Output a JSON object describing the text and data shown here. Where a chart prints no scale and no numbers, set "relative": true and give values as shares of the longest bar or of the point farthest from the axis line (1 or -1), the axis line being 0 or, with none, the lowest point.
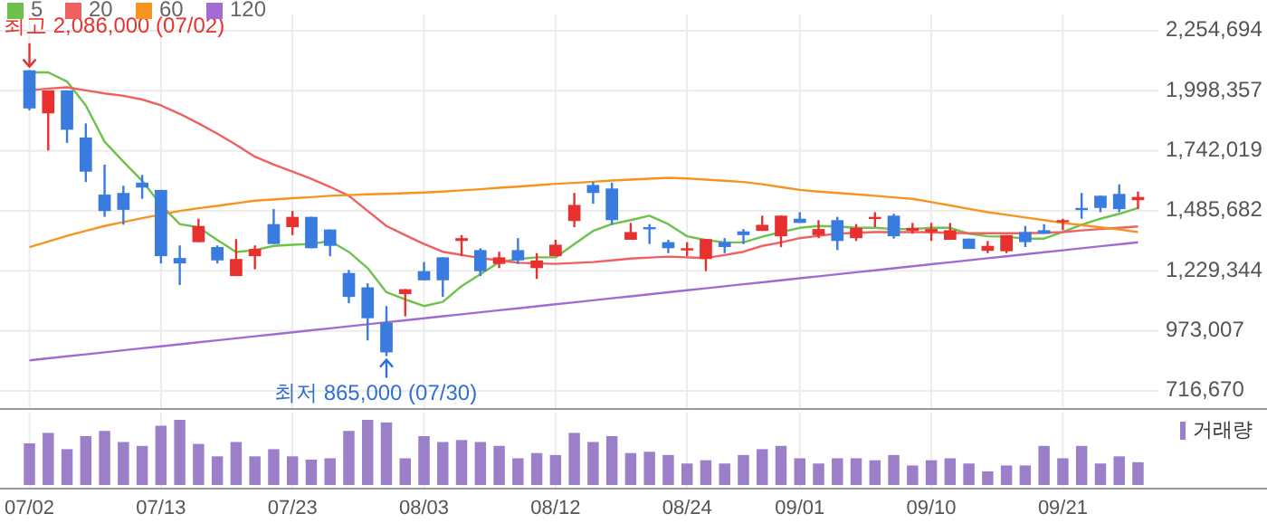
{
  "chart_data": [
    {
      "type": "candlestick",
      "categories": [
        "07/02",
        null,
        null,
        null,
        null,
        null,
        null,
        "07/13",
        null,
        null,
        null,
        null,
        null,
        null,
        "07/23",
        null,
        null,
        null,
        null,
        null,
        null,
        "08/03",
        null,
        null,
        null,
        null,
        null,
        null,
        "08/12",
        null,
        null,
        null,
        null,
        null,
        null,
        "08/24",
        null,
        null,
        null,
        null,
        null,
        "09/01",
        null,
        null,
        null,
        null,
        null,
        null,
        "09/10",
        null,
        null,
        null,
        null,
        null,
        null,
        "09/21",
        null,
        null,
        null,
        null
      ],
      "ohlc": [
        [
          2086000,
          2086000,
          1915000,
          1923000
        ],
        [
          1902000,
          2000000,
          1743000,
          2000000
        ],
        [
          2000000,
          2000000,
          1776000,
          1832000
        ],
        [
          1799000,
          1859000,
          1609000,
          1653000
        ],
        [
          1555000,
          1683000,
          1460000,
          1485000
        ],
        [
          1562000,
          1593000,
          1426000,
          1490000
        ],
        [
          1606000,
          1639000,
          1537000,
          1585000
        ],
        [
          1575000,
          1575000,
          1261000,
          1292000
        ],
        [
          1284000,
          1338000,
          1169000,
          1261000
        ],
        [
          1352000,
          1452000,
          1352000,
          1421000
        ],
        [
          1331000,
          1338000,
          1261000,
          1274000
        ],
        [
          1207000,
          1365000,
          1207000,
          1280000
        ],
        [
          1292000,
          1338000,
          1236000,
          1323000
        ],
        [
          1429000,
          1493000,
          1344000,
          1344000
        ],
        [
          1416000,
          1485000,
          1382000,
          1460000
        ],
        [
          1460000,
          1460000,
          1326000,
          1326000
        ],
        [
          1406000,
          1406000,
          1292000,
          1336000
        ],
        [
          1220000,
          1233000,
          1091000,
          1118000
        ],
        [
          1159000,
          1176000,
          932000,
          1027000
        ],
        [
          1009000,
          1079000,
          865000,
          881000
        ],
        [
          1130000,
          1151000,
          1035000,
          1151000
        ],
        [
          1228000,
          1267000,
          1189000,
          1189000
        ],
        [
          1287000,
          1287000,
          1118000,
          1189000
        ],
        [
          1357000,
          1382000,
          1292000,
          1369000
        ],
        [
          1318000,
          1326000,
          1207000,
          1228000
        ],
        [
          1259000,
          1311000,
          1241000,
          1287000
        ],
        [
          1318000,
          1369000,
          1259000,
          1274000
        ],
        [
          1241000,
          1305000,
          1195000,
          1274000
        ],
        [
          1292000,
          1362000,
          1292000,
          1341000
        ],
        [
          1442000,
          1562000,
          1416000,
          1511000
        ],
        [
          1596000,
          1609000,
          1516000,
          1562000
        ],
        [
          1581000,
          1606000,
          1426000,
          1446000
        ],
        [
          1362000,
          1434000,
          1362000,
          1395000
        ],
        [
          1416000,
          1429000,
          1344000,
          1408000
        ],
        [
          1352000,
          1362000,
          1305000,
          1326000
        ],
        [
          1321000,
          1352000,
          1292000,
          1326000
        ],
        [
          1280000,
          1365000,
          1228000,
          1365000
        ],
        [
          1352000,
          1369000,
          1305000,
          1331000
        ],
        [
          1398000,
          1408000,
          1344000,
          1382000
        ],
        [
          1400000,
          1465000,
          1400000,
          1426000
        ],
        [
          1377000,
          1465000,
          1331000,
          1465000
        ],
        [
          1452000,
          1480000,
          1434000,
          1434000
        ],
        [
          1382000,
          1446000,
          1369000,
          1408000
        ],
        [
          1446000,
          1460000,
          1318000,
          1357000
        ],
        [
          1369000,
          1429000,
          1357000,
          1413000
        ],
        [
          1454000,
          1480000,
          1416000,
          1460000
        ],
        [
          1465000,
          1473000,
          1367000,
          1377000
        ],
        [
          1400000,
          1434000,
          1388000,
          1413000
        ],
        [
          1395000,
          1434000,
          1357000,
          1408000
        ],
        [
          1362000,
          1434000,
          1362000,
          1403000
        ],
        [
          1367000,
          1367000,
          1323000,
          1323000
        ],
        [
          1315000,
          1357000,
          1305000,
          1336000
        ],
        [
          1313000,
          1382000,
          1305000,
          1382000
        ],
        [
          1395000,
          1421000,
          1331000,
          1352000
        ],
        [
          1403000,
          1429000,
          1388000,
          1388000
        ],
        [
          1439000,
          1452000,
          1403000,
          1446000
        ],
        [
          1498000,
          1562000,
          1452000,
          1493000
        ],
        [
          1550000,
          1550000,
          1480000,
          1498000
        ],
        [
          1558000,
          1599000,
          1480000,
          1493000
        ],
        [
          1531000,
          1568000,
          1493000,
          1545000
        ]
      ],
      "colors": [
        "#3a7be0",
        "#e8312f",
        "#3a7be0",
        "#3a7be0",
        "#3a7be0",
        "#3a7be0",
        "#3a7be0",
        "#3a7be0",
        "#3a7be0",
        "#e8312f",
        "#3a7be0",
        "#e8312f",
        "#e8312f",
        "#3a7be0",
        "#e8312f",
        "#3a7be0",
        "#3a7be0",
        "#3a7be0",
        "#3a7be0",
        "#3a7be0",
        "#e8312f",
        "#3a7be0",
        "#3a7be0",
        "#e8312f",
        "#3a7be0",
        "#e8312f",
        "#3a7be0",
        "#e8312f",
        "#e8312f",
        "#e8312f",
        "#3a7be0",
        "#3a7be0",
        "#e8312f",
        "#3a7be0",
        "#3a7be0",
        "#e8312f",
        "#e8312f",
        "#3a7be0",
        "#3a7be0",
        "#e8312f",
        "#e8312f",
        "#3a7be0",
        "#e8312f",
        "#3a7be0",
        "#e8312f",
        "#e8312f",
        "#3a7be0",
        "#e8312f",
        "#e8312f",
        "#e8312f",
        "#3a7be0",
        "#e8312f",
        "#e8312f",
        "#3a7be0",
        "#3a7be0",
        "#e8312f",
        "#3a7be0",
        "#3a7be0",
        "#3a7be0",
        "#e8312f"
      ],
      "series": [
        {
          "name": "5",
          "type": "line",
          "color": "#6cc24a",
          "values": [
            2077000,
            2077000,
            2038000,
            1936000,
            1781000,
            1696000,
            1614000,
            1511000,
            1429000,
            1415000,
            1361000,
            1310000,
            1318000,
            1336000,
            1341000,
            1344000,
            1357000,
            1310000,
            1241000,
            1138000,
            1107000,
            1079000,
            1097000,
            1164000,
            1215000,
            1266000,
            1280000,
            1287000,
            1287000,
            1344000,
            1400000,
            1429000,
            1446000,
            1465000,
            1429000,
            1377000,
            1361000,
            1351000,
            1351000,
            1375000,
            1395000,
            1413000,
            1421000,
            1419000,
            1413000,
            1413000,
            1408000,
            1408000,
            1413000,
            1413000,
            1388000,
            1377000,
            1375000,
            1367000,
            1367000,
            1395000,
            1426000,
            1452000,
            1473000,
            1498000
          ]
        },
        {
          "name": "20",
          "type": "line",
          "color": "#f06060",
          "values": [
            2000000,
            2008000,
            2013000,
            2000000,
            1987000,
            1977000,
            1961000,
            1936000,
            1900000,
            1859000,
            1815000,
            1768000,
            1717000,
            1683000,
            1653000,
            1622000,
            1588000,
            1550000,
            1485000,
            1421000,
            1382000,
            1344000,
            1311000,
            1297000,
            1284000,
            1274000,
            1264000,
            1261000,
            1259000,
            1263000,
            1267000,
            1274000,
            1282000,
            1286000,
            1290000,
            1287000,
            1284000,
            1297000,
            1311000,
            1336000,
            1351000,
            1369000,
            1379000,
            1388000,
            1392000,
            1395000,
            1395000,
            1395000,
            1394000,
            1392000,
            1390000,
            1390000,
            1390000,
            1390000,
            1392000,
            1395000,
            1402000,
            1408000,
            1413000,
            1419000
          ]
        },
        {
          "name": "60",
          "type": "line",
          "color": "#f7941d",
          "values": [
            1331000,
            1355000,
            1379000,
            1400000,
            1421000,
            1438000,
            1454000,
            1470000,
            1485000,
            1497000,
            1507000,
            1518000,
            1529000,
            1534000,
            1540000,
            1544000,
            1550000,
            1553000,
            1556000,
            1558000,
            1561000,
            1564000,
            1568000,
            1573000,
            1578000,
            1584000,
            1589000,
            1595000,
            1601000,
            1605000,
            1610000,
            1615000,
            1619000,
            1623000,
            1627000,
            1624000,
            1619000,
            1614000,
            1609000,
            1599000,
            1587000,
            1575000,
            1568000,
            1562000,
            1556000,
            1550000,
            1543000,
            1537000,
            1523000,
            1509000,
            1494000,
            1480000,
            1469000,
            1457000,
            1446000,
            1434000,
            1425000,
            1415000,
            1406000,
            1395000
          ]
        },
        {
          "name": "120",
          "type": "line",
          "color": "#a26bd4",
          "values": [
            847300,
            855800,
            864400,
            872900,
            881500,
            890000,
            898600,
            907100,
            915700,
            924200,
            932800,
            941300,
            949800,
            958400,
            966900,
            975500,
            984000,
            992600,
            1001100,
            1009700,
            1018200,
            1026700,
            1035300,
            1043800,
            1052400,
            1060900,
            1069500,
            1078000,
            1086600,
            1095100,
            1103600,
            1112200,
            1120700,
            1129300,
            1137800,
            1146400,
            1154900,
            1163500,
            1172000,
            1180600,
            1189100,
            1197600,
            1206200,
            1214700,
            1223300,
            1231800,
            1240400,
            1248900,
            1257500,
            1266000,
            1274500,
            1283100,
            1291600,
            1300200,
            1308700,
            1317300,
            1325800,
            1334400,
            1342900,
            1351400
          ]
        }
      ],
      "ylim": [
        716670,
        2254694
      ],
      "yticks": [
        {
          "value": 2254694,
          "label": "2,254,694"
        },
        {
          "value": 1998357,
          "label": "1,998,357"
        },
        {
          "value": 1742019,
          "label": "1,742,019"
        },
        {
          "value": 1485682,
          "label": "1,485,682"
        },
        {
          "value": 1229344,
          "label": "1,229,344"
        },
        {
          "value": 973007,
          "label": "973,007"
        },
        {
          "value": 716670,
          "label": "716,670"
        }
      ],
      "grid": true,
      "legend": "top left",
      "tick_labels": "y",
      "annotations": [
        {
          "text": "최고 2,086,000 (07/02)",
          "x": "07/02",
          "y": 2086000
        },
        {
          "text": "최저 865,000 (07/30)",
          "y": 865000
        }
      ]
    },
    {
      "type": "bar",
      "relative": true,
      "categories": [
        "07/02",
        null,
        null,
        null,
        null,
        null,
        null,
        "07/13",
        null,
        null,
        null,
        null,
        null,
        null,
        "07/23",
        null,
        null,
        null,
        null,
        null,
        null,
        "08/03",
        null,
        null,
        null,
        null,
        null,
        null,
        "08/12",
        null,
        null,
        null,
        null,
        null,
        null,
        "08/24",
        null,
        null,
        null,
        null,
        null,
        "09/01",
        null,
        null,
        null,
        null,
        null,
        null,
        "09/10",
        null,
        null,
        null,
        null,
        null,
        null,
        "09/21",
        null,
        null,
        null,
        null
      ],
      "series": [
        {
          "name": "거래량",
          "color": "#9b80c9",
          "values": [
            0.64,
            0.8,
            0.55,
            0.75,
            0.83,
            0.66,
            0.6,
            0.91,
            1,
            0.63,
            0.44,
            0.66,
            0.44,
            0.55,
            0.44,
            0.39,
            0.41,
            0.83,
            1,
            0.96,
            0.41,
            0.75,
            0.66,
            0.69,
            0.66,
            0.6,
            0.41,
            0.49,
            0.46,
            0.8,
            0.66,
            0.75,
            0.49,
            0.51,
            0.46,
            0.33,
            0.38,
            0.33,
            0.46,
            0.55,
            0.6,
            0.41,
            0.33,
            0.41,
            0.41,
            0.38,
            0.46,
            0.3,
            0.38,
            0.41,
            0.33,
            0.21,
            0.3,
            0.3,
            0.6,
            0.41,
            0.6,
            0.33,
            0.44,
            0.35
          ]
        }
      ],
      "grid": "x",
      "legend": "top right",
      "tick_labels": "x"
    }
  ]
}
